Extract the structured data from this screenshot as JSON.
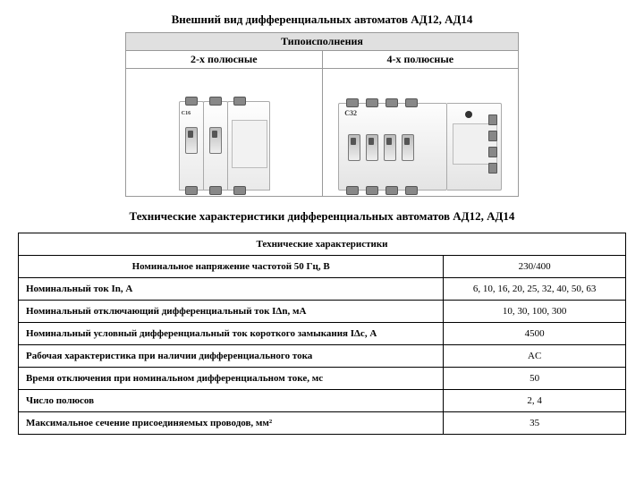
{
  "title_appearance": "Внешний вид дифференциальных автоматов АД12, АД14",
  "title_specs": "Технические характеристики дифференциальных автоматов АД12, АД14",
  "type_header": "Типоисполнения",
  "col_2pole": "2-х полюсные",
  "col_4pole": "4-х полюсные",
  "device2_label": "C16",
  "device4_label": "C32",
  "spec_header": "Технические характеристики",
  "row_voltage_label": "Номинальное напряжение частотой 50 Гц, В",
  "row_voltage_val": "230/400",
  "rows": [
    {
      "param": "Номинальный ток In, А",
      "val": "6, 10, 16, 20, 25, 32, 40, 50, 63"
    },
    {
      "param": "Номинальный отключающий дифференциальный ток IΔn, мА",
      "val": "10, 30, 100, 300"
    },
    {
      "param": "Номинальный условный дифференциальный ток короткого замыкания IΔc, А",
      "val": "4500"
    },
    {
      "param": "Рабочая характеристика при наличии дифференциального тока",
      "val": "AC"
    },
    {
      "param": "Время отключения при номинальном дифференциальном токе, мс",
      "val": "50"
    },
    {
      "param": "Число полюсов",
      "val": "2, 4"
    },
    {
      "param": "Максимальное сечение присоединяемых проводов, мм²",
      "val": "35"
    }
  ]
}
